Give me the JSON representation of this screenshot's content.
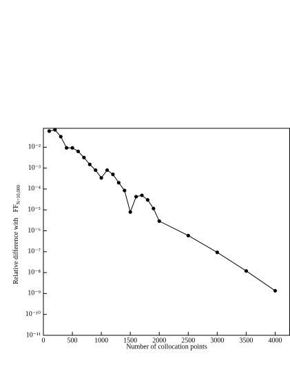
{
  "chart_data": {
    "type": "line",
    "x_label": "Number of collocation points",
    "y_label": "Relative difference with",
    "y_label_symbol": "FF",
    "y_label_subscript": "N=10,000",
    "log_y": true,
    "color": "#000000",
    "x": [
      100,
      200,
      300,
      400,
      500,
      600,
      700,
      800,
      900,
      1000,
      1100,
      1200,
      1300,
      1400,
      1500,
      1600,
      1700,
      1800,
      1900,
      2000,
      2500,
      3000,
      3500,
      4000
    ],
    "values": [
      0.059,
      0.068,
      0.032,
      0.0093,
      0.0093,
      0.0063,
      0.0032,
      0.0015,
      0.0008,
      0.00034,
      0.0008,
      0.0005,
      0.0002,
      8.5e-05,
      7.9e-06,
      4.3e-05,
      5e-05,
      3e-05,
      1.17e-05,
      2.9e-06,
      5.9e-07,
      9.3e-08,
      1.2e-08,
      1.35e-09
    ],
    "xlim": [
      0,
      4250
    ],
    "xticks": [
      0,
      500,
      1000,
      1500,
      2000,
      2500,
      3000,
      3500,
      4000
    ],
    "ylim": [
      1e-11,
      0.08
    ],
    "yticks": [
      {
        "value": 0.01,
        "label": "10⁻²"
      },
      {
        "value": 0.001,
        "label": "10⁻³"
      },
      {
        "value": 0.0001,
        "label": "10⁻⁴"
      },
      {
        "value": 1e-05,
        "label": "10⁻⁵"
      },
      {
        "value": 1e-06,
        "label": "10⁻⁶"
      },
      {
        "value": 1e-07,
        "label": "10⁻⁷"
      },
      {
        "value": 1e-08,
        "label": "10⁻⁸"
      },
      {
        "value": 1e-09,
        "label": "10⁻⁹"
      },
      {
        "value": 1e-10,
        "label": "10⁻¹⁰"
      },
      {
        "value": 1e-11,
        "label": "10⁻¹¹"
      }
    ]
  }
}
